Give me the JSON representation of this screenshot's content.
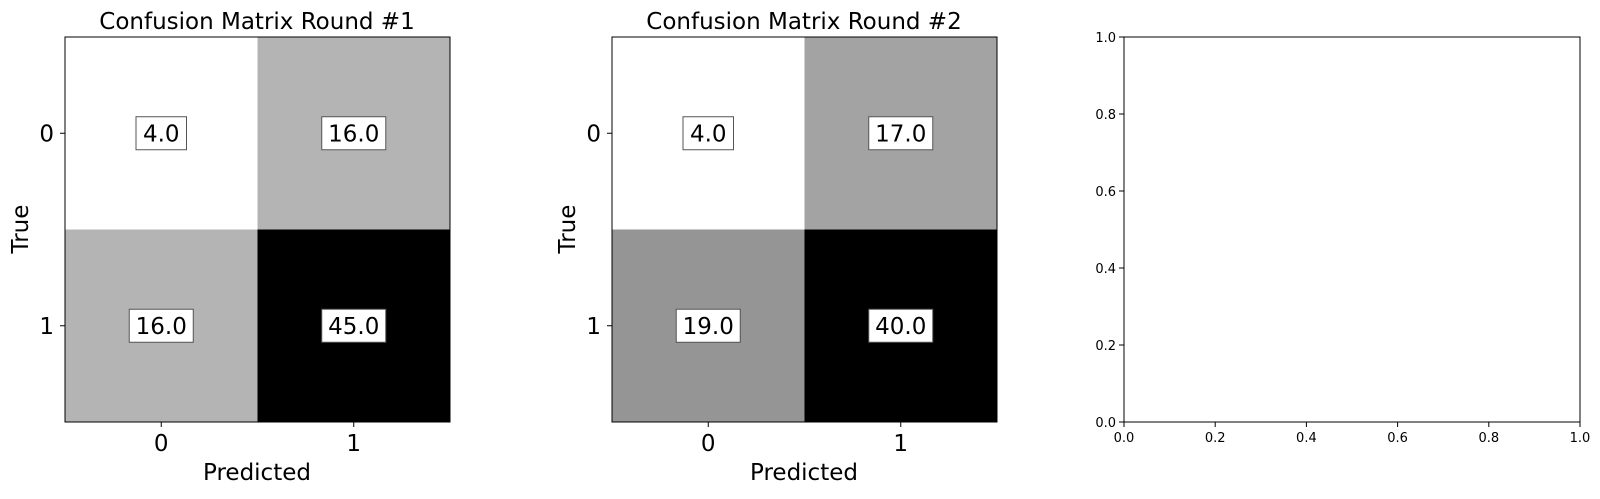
{
  "chart_data": [
    {
      "type": "heatmap",
      "title": "Confusion Matrix Round #1",
      "xlabel": "Predicted",
      "ylabel": "True",
      "x_ticks": [
        "0",
        "1"
      ],
      "y_ticks": [
        "0",
        "1"
      ],
      "colormap": "gray_r",
      "values": [
        [
          4.0,
          16.0
        ],
        [
          16.0,
          45.0
        ]
      ],
      "labels": [
        [
          "4.0",
          "16.0"
        ],
        [
          "16.0",
          "45.0"
        ]
      ]
    },
    {
      "type": "heatmap",
      "title": "Confusion Matrix Round #2",
      "xlabel": "Predicted",
      "ylabel": "True",
      "x_ticks": [
        "0",
        "1"
      ],
      "y_ticks": [
        "0",
        "1"
      ],
      "colormap": "gray_r",
      "values": [
        [
          4.0,
          17.0
        ],
        [
          19.0,
          40.0
        ]
      ],
      "labels": [
        [
          "4.0",
          "17.0"
        ],
        [
          "19.0",
          "40.0"
        ]
      ]
    },
    {
      "type": "scatter",
      "title": "",
      "xlabel": "",
      "ylabel": "",
      "xlim": [
        0.0,
        1.0
      ],
      "ylim": [
        0.0,
        1.0
      ],
      "x_ticks": [
        "0.0",
        "0.2",
        "0.4",
        "0.6",
        "0.8",
        "1.0"
      ],
      "y_ticks": [
        "0.0",
        "0.2",
        "0.4",
        "0.6",
        "0.8",
        "1.0"
      ],
      "series": []
    }
  ]
}
